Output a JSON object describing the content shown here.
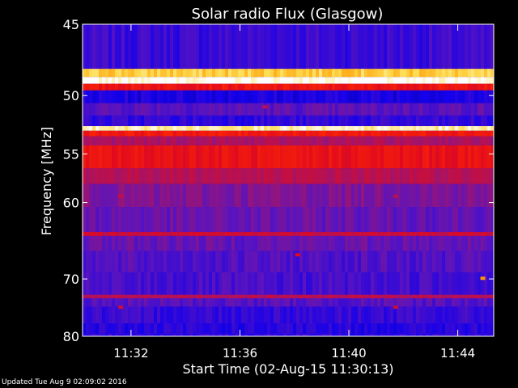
{
  "chart_data": {
    "type": "heatmap",
    "title": "Solar radio Flux (Glasgow)",
    "xlabel": "Start Time (02-Aug-15 11:30:13)",
    "ylabel": "Frequency [MHz]",
    "x_ticks": [
      "11:32",
      "11:36",
      "11:40",
      "11:44"
    ],
    "x_tick_minutes": [
      1.78,
      5.78,
      9.78,
      13.78
    ],
    "xlim_minutes": [
      0,
      15.1
    ],
    "y_ticks": [
      45,
      50,
      55,
      60,
      70,
      80
    ],
    "ylim_mhz": [
      45,
      80
    ],
    "y_scale": "reciprocal",
    "colormap": "blue-red-yellow-white",
    "bands": [
      {
        "from": 45.0,
        "to": 48.0,
        "intensity": 0.22
      },
      {
        "from": 48.0,
        "to": 48.6,
        "intensity": 0.88
      },
      {
        "from": 48.6,
        "to": 49.1,
        "intensity": 1.0
      },
      {
        "from": 49.1,
        "to": 49.6,
        "intensity": 0.6
      },
      {
        "from": 49.6,
        "to": 50.6,
        "intensity": 0.16
      },
      {
        "from": 50.6,
        "to": 51.6,
        "intensity": 0.28
      },
      {
        "from": 51.6,
        "to": 52.5,
        "intensity": 0.2
      },
      {
        "from": 52.5,
        "to": 52.9,
        "intensity": 0.95
      },
      {
        "from": 52.9,
        "to": 53.4,
        "intensity": 0.62
      },
      {
        "from": 53.4,
        "to": 54.2,
        "intensity": 0.42
      },
      {
        "from": 54.2,
        "to": 56.4,
        "intensity": 0.58
      },
      {
        "from": 56.4,
        "to": 58.0,
        "intensity": 0.45
      },
      {
        "from": 58.0,
        "to": 60.5,
        "intensity": 0.34
      },
      {
        "from": 60.5,
        "to": 63.5,
        "intensity": 0.3
      },
      {
        "from": 63.5,
        "to": 64.0,
        "intensity": 0.5
      },
      {
        "from": 64.0,
        "to": 66.0,
        "intensity": 0.3
      },
      {
        "from": 66.0,
        "to": 69.0,
        "intensity": 0.26
      },
      {
        "from": 69.0,
        "to": 72.5,
        "intensity": 0.24
      },
      {
        "from": 72.5,
        "to": 73.1,
        "intensity": 0.45
      },
      {
        "from": 73.1,
        "to": 74.5,
        "intensity": 0.27
      },
      {
        "from": 74.5,
        "to": 77.5,
        "intensity": 0.21
      },
      {
        "from": 77.5,
        "to": 79.5,
        "intensity": 0.18
      },
      {
        "from": 79.5,
        "to": 80.0,
        "intensity": 0.2
      }
    ],
    "hotspots": [
      {
        "minute": 6.7,
        "mhz": 50.9,
        "intensity": 0.45
      },
      {
        "minute": 1.4,
        "mhz": 59.3,
        "intensity": 0.48
      },
      {
        "minute": 11.5,
        "mhz": 59.3,
        "intensity": 0.45
      },
      {
        "minute": 7.9,
        "mhz": 66.5,
        "intensity": 0.55
      },
      {
        "minute": 14.7,
        "mhz": 69.9,
        "intensity": 0.8
      },
      {
        "minute": 1.4,
        "mhz": 74.6,
        "intensity": 0.5
      },
      {
        "minute": 11.5,
        "mhz": 74.6,
        "intensity": 0.5
      }
    ]
  },
  "footer": "Updated Tue Aug  9 02:09:02 2016"
}
